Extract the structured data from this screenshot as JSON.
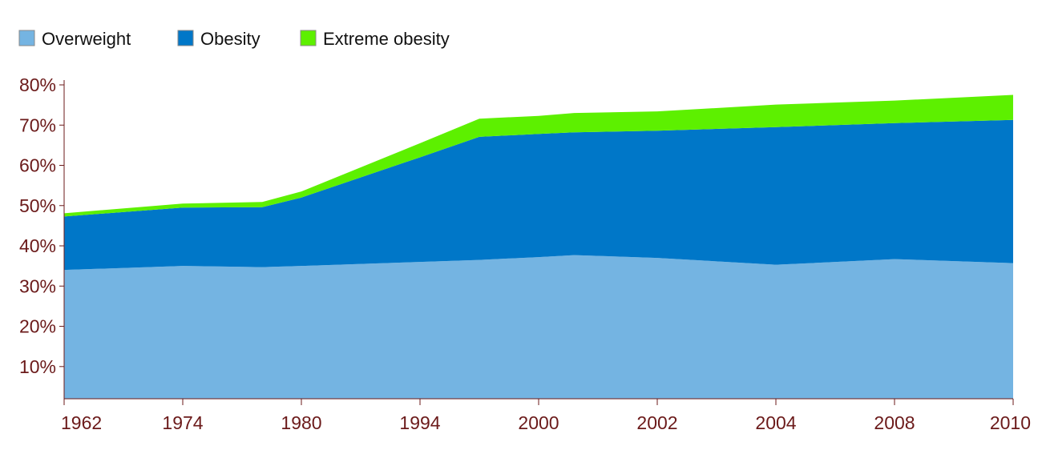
{
  "chart_data": {
    "type": "area",
    "stacked": true,
    "x": [
      "1962",
      "1974",
      "1980",
      "1994",
      "2000",
      "2002",
      "2004",
      "2008",
      "2010"
    ],
    "series": [
      {
        "name": "Overweight",
        "color": "#74b4e2",
        "points": [
          {
            "x": 0,
            "y": 34.0
          },
          {
            "x": 1,
            "y": 35.0
          },
          {
            "x": 1.67,
            "y": 34.7
          },
          {
            "x": 2,
            "y": 35.0
          },
          {
            "x": 3,
            "y": 36.0
          },
          {
            "x": 3.5,
            "y": 36.5
          },
          {
            "x": 4,
            "y": 37.2
          },
          {
            "x": 4.3,
            "y": 37.7
          },
          {
            "x": 5,
            "y": 37.0
          },
          {
            "x": 6,
            "y": 35.3
          },
          {
            "x": 7,
            "y": 36.7
          },
          {
            "x": 8,
            "y": 35.7
          }
        ]
      },
      {
        "name": "Obesity",
        "color": "#0077c8",
        "points": [
          {
            "x": 0,
            "y": 13.3
          },
          {
            "x": 1,
            "y": 14.5
          },
          {
            "x": 1.67,
            "y": 14.9
          },
          {
            "x": 2,
            "y": 17.0
          },
          {
            "x": 3,
            "y": 26.0
          },
          {
            "x": 3.5,
            "y": 30.6
          },
          {
            "x": 4,
            "y": 30.6
          },
          {
            "x": 4.3,
            "y": 30.5
          },
          {
            "x": 5,
            "y": 31.6
          },
          {
            "x": 6,
            "y": 34.2
          },
          {
            "x": 7,
            "y": 33.8
          },
          {
            "x": 8,
            "y": 35.6
          }
        ]
      },
      {
        "name": "Extreme obesity",
        "color": "#5df000",
        "points": [
          {
            "x": 0,
            "y": 0.8
          },
          {
            "x": 1,
            "y": 1.0
          },
          {
            "x": 1.67,
            "y": 1.3
          },
          {
            "x": 2,
            "y": 1.5
          },
          {
            "x": 3,
            "y": 3.5
          },
          {
            "x": 3.5,
            "y": 4.5
          },
          {
            "x": 4,
            "y": 4.5
          },
          {
            "x": 4.3,
            "y": 4.8
          },
          {
            "x": 5,
            "y": 4.8
          },
          {
            "x": 6,
            "y": 5.6
          },
          {
            "x": 7,
            "y": 5.6
          },
          {
            "x": 8,
            "y": 6.2
          }
        ]
      }
    ],
    "yticks": [
      "10%",
      "20%",
      "30%",
      "40%",
      "50%",
      "60%",
      "70%",
      "80%"
    ],
    "ytick_values": [
      10,
      20,
      30,
      40,
      50,
      60,
      70,
      80
    ],
    "ylim": [
      2,
      80
    ],
    "legend_position": "top-left",
    "axis_color": "#6b1a1a",
    "grid": false,
    "title": "",
    "xlabel": "",
    "ylabel": ""
  }
}
